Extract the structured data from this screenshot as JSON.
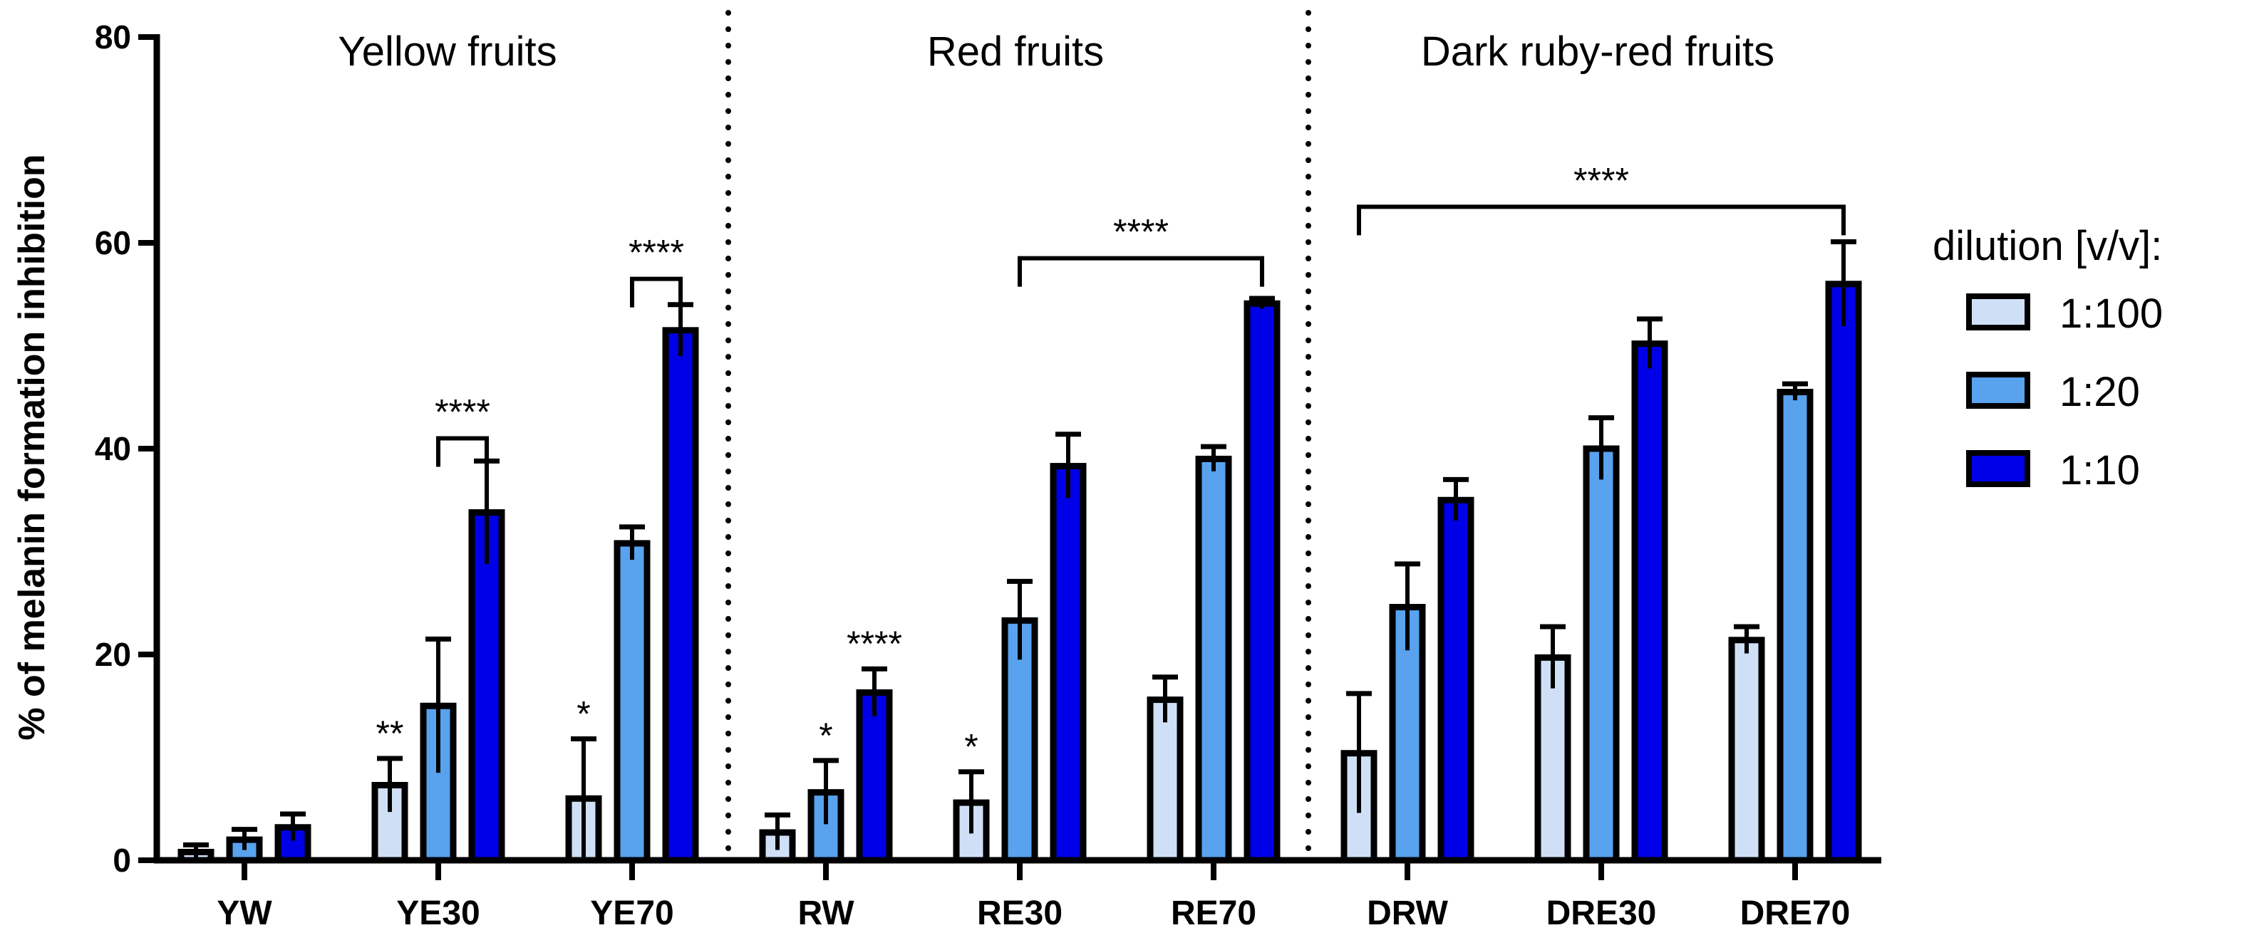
{
  "chart_data": {
    "type": "bar",
    "title": "",
    "xlabel": "",
    "ylabel": "% of melanin formation inhibition",
    "ylim": [
      0,
      80
    ],
    "yticks": [
      "0",
      "20",
      "40",
      "60",
      "80"
    ],
    "categories": [
      "YW",
      "YE30",
      "YE70",
      "RW",
      "RE30",
      "RE70",
      "DRW",
      "DRE30",
      "DRE70"
    ],
    "colors": {
      "1:100": "#cfe0f6",
      "1:20": "#58a2ee",
      "1:10": "#0000e8",
      "stroke": "#000000"
    },
    "series": [
      {
        "name": "1:100",
        "values": [
          0.8,
          7.3,
          6.0,
          2.7,
          5.6,
          15.6,
          10.4,
          19.7,
          21.4
        ],
        "errors": [
          0.7,
          2.6,
          5.8,
          1.7,
          3.0,
          2.2,
          5.8,
          3.0,
          1.3
        ]
      },
      {
        "name": "1:20",
        "values": [
          2.0,
          15.0,
          30.8,
          6.6,
          23.3,
          39.0,
          24.6,
          40.0,
          45.5
        ],
        "errors": [
          1.0,
          6.5,
          1.6,
          3.1,
          3.8,
          1.2,
          4.2,
          3.0,
          0.8
        ]
      },
      {
        "name": "1:10",
        "values": [
          3.2,
          33.8,
          51.5,
          16.3,
          38.3,
          54.1,
          35.0,
          50.2,
          56.0
        ],
        "errors": [
          1.3,
          5.0,
          2.5,
          2.3,
          3.1,
          0.5,
          2.0,
          2.4,
          4.1
        ]
      }
    ],
    "groups": [
      {
        "title": "Yellow fruits",
        "from": 0,
        "to": 2
      },
      {
        "title": "Red fruits",
        "from": 3,
        "to": 5
      },
      {
        "title": "Dark ruby-red fruits",
        "from": 6,
        "to": 8
      }
    ],
    "legend": {
      "title": "dilution [v/v]:",
      "position": "right"
    },
    "significance": [
      {
        "label": "**",
        "category": 1,
        "series": 0
      },
      {
        "label": "*",
        "category": 2,
        "series": 0
      },
      {
        "label": "*",
        "category": 3,
        "series": 1
      },
      {
        "label": "****",
        "category": 3,
        "series": 2
      },
      {
        "label": "*",
        "category": 4,
        "series": 0
      }
    ],
    "brackets": [
      {
        "label": "****",
        "from_category": 1,
        "from_series": 1,
        "to_category": 1,
        "to_series": 2,
        "y": 41
      },
      {
        "label": "****",
        "from_category": 2,
        "from_series": 1,
        "to_category": 2,
        "to_series": 2,
        "y": 56.5
      },
      {
        "label": "****",
        "from_category": 4,
        "from_series": 1,
        "to_category": 5,
        "to_series": 2,
        "y": 58.5
      },
      {
        "label": "****",
        "from_category": 6,
        "from_series": 0,
        "to_category": 8,
        "to_series": 2,
        "y": 63.5
      }
    ]
  }
}
